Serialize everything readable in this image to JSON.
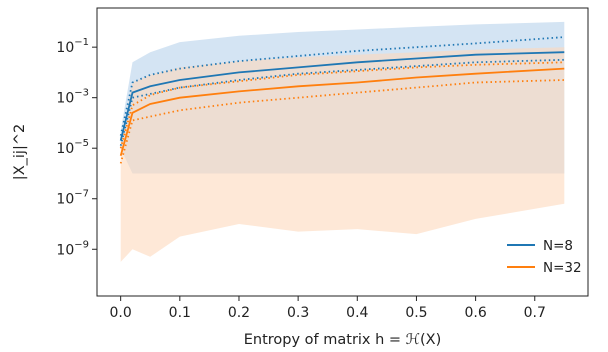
{
  "chart_data": {
    "type": "line",
    "xlabel": "Entropy of matrix h = ℋ(X)",
    "ylabel": "|X_ij|^2",
    "y_scale": "log",
    "xlim": [
      -0.04,
      0.79
    ],
    "ylim_log10": [
      -10.85,
      0.55
    ],
    "x_ticks": [
      0.0,
      0.1,
      0.2,
      0.3,
      0.4,
      0.5,
      0.6,
      0.7
    ],
    "x_tick_labels": [
      "0.0",
      "0.1",
      "0.2",
      "0.3",
      "0.4",
      "0.5",
      "0.6",
      "0.7"
    ],
    "y_ticks_log10": [
      -9,
      -7,
      -5,
      -3,
      -1
    ],
    "y_tick_labels": [
      "10",
      "10",
      "10",
      "10",
      "10"
    ],
    "y_tick_exponents": [
      "−9",
      "−7",
      "−5",
      "−3",
      "−1"
    ],
    "grid": false,
    "legend": "lower-right",
    "series": [
      {
        "name": "N=8",
        "color": "#1f77b4",
        "x": [
          0.0,
          0.02,
          0.05,
          0.1,
          0.2,
          0.3,
          0.4,
          0.5,
          0.6,
          0.75
        ],
        "mean_log10": [
          -4.7,
          -2.8,
          -2.55,
          -2.3,
          -2.0,
          -1.8,
          -1.6,
          -1.45,
          -1.3,
          -1.2
        ],
        "upper_dotted_log10": [
          -4.5,
          -2.4,
          -2.1,
          -1.85,
          -1.55,
          -1.35,
          -1.15,
          -1.0,
          -0.85,
          -0.6
        ],
        "lower_dotted_log10": [
          -4.9,
          -3.0,
          -2.85,
          -2.6,
          -2.3,
          -2.05,
          -1.9,
          -1.75,
          -1.6,
          -1.5
        ],
        "band_upper_log10": [
          -4.3,
          -1.6,
          -1.2,
          -0.8,
          -0.55,
          -0.4,
          -0.3,
          -0.2,
          -0.1,
          0.0
        ],
        "band_lower_log10": [
          -5.0,
          -6.0,
          -6.0,
          -6.0,
          -6.0,
          -6.0,
          -6.0,
          -6.0,
          -6.0,
          -6.0
        ]
      },
      {
        "name": "N=32",
        "color": "#ff7f0e",
        "x": [
          0.0,
          0.02,
          0.05,
          0.1,
          0.2,
          0.3,
          0.4,
          0.5,
          0.6,
          0.75
        ],
        "mean_log10": [
          -5.3,
          -3.6,
          -3.25,
          -3.0,
          -2.75,
          -2.55,
          -2.4,
          -2.2,
          -2.05,
          -1.85
        ],
        "upper_dotted_log10": [
          -5.0,
          -3.3,
          -2.9,
          -2.6,
          -2.35,
          -2.1,
          -1.95,
          -1.8,
          -1.7,
          -1.6
        ],
        "lower_dotted_log10": [
          -5.6,
          -3.9,
          -3.75,
          -3.5,
          -3.2,
          -3.0,
          -2.8,
          -2.6,
          -2.4,
          -2.3
        ],
        "band_upper_log10": [
          -4.8,
          -2.4,
          -2.1,
          -1.8,
          -1.55,
          -1.4,
          -1.3,
          -1.2,
          -1.1,
          -1.0
        ],
        "band_lower_log10": [
          -9.5,
          -9.0,
          -9.3,
          -8.5,
          -8.0,
          -8.3,
          -8.2,
          -8.4,
          -7.8,
          -7.2
        ]
      }
    ]
  }
}
